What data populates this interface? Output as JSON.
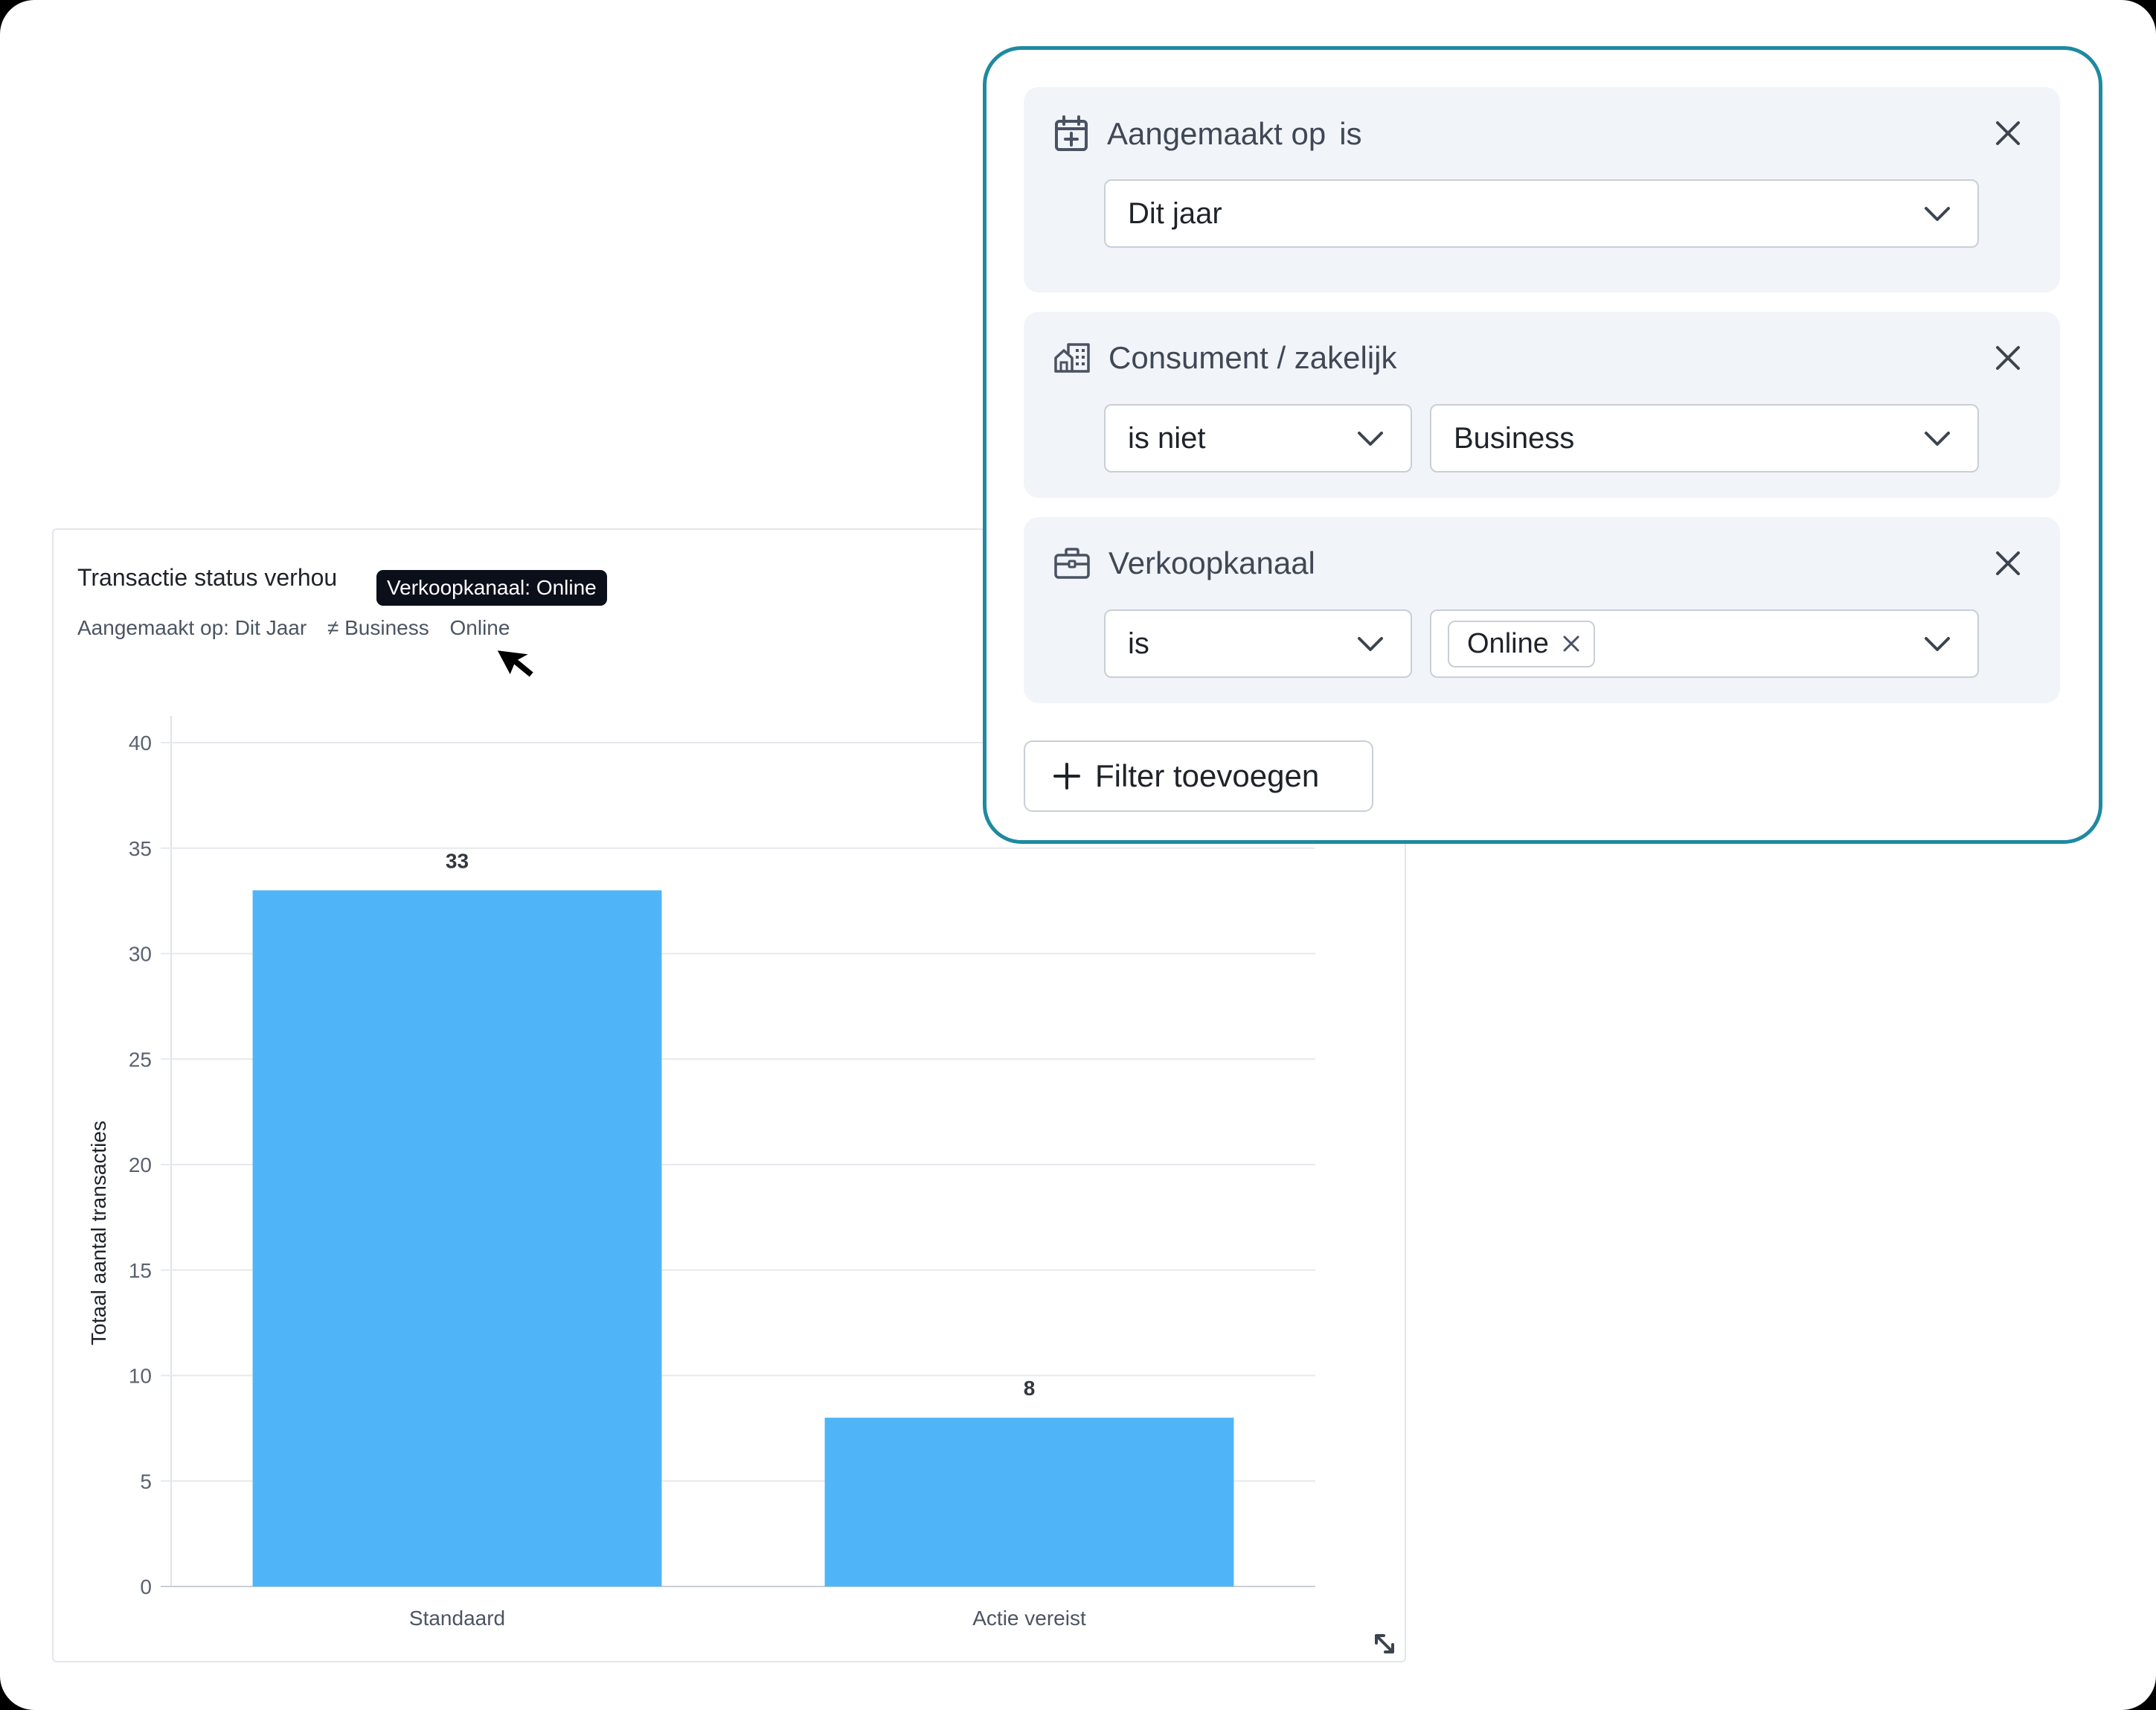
{
  "chart_card": {
    "title": "Transactie status verhou",
    "tooltip": "Verkoopkanaal: Online",
    "filters": {
      "created": "Aangemaakt op: Dit Jaar",
      "segment": "≠ Business",
      "channel": "Online"
    }
  },
  "chart_data": {
    "type": "bar",
    "categories": [
      "Standaard",
      "Actie vereist"
    ],
    "values": [
      33,
      8
    ],
    "data_labels": [
      "33",
      "8"
    ],
    "ylabel": "Totaal aantal transacties",
    "xlabel": "",
    "ylim": [
      0,
      40
    ],
    "yticks": [
      0,
      5,
      10,
      15,
      20,
      25,
      30,
      35,
      40
    ],
    "grid": true,
    "bar_color": "#4fb5f8"
  },
  "filter_panel": {
    "accent_color": "#1e8aa0",
    "filters": [
      {
        "icon": "calendar-plus-icon",
        "field": "Aangemaakt op",
        "operator_text": "is",
        "value": "Dit jaar"
      },
      {
        "icon": "buildings-icon",
        "field": "Consument / zakelijk",
        "operator": "is niet",
        "value": "Business"
      },
      {
        "icon": "briefcase-icon",
        "field": "Verkoopkanaal",
        "operator": "is",
        "chip": "Online"
      }
    ],
    "add_button": "Filter toevoegen"
  }
}
